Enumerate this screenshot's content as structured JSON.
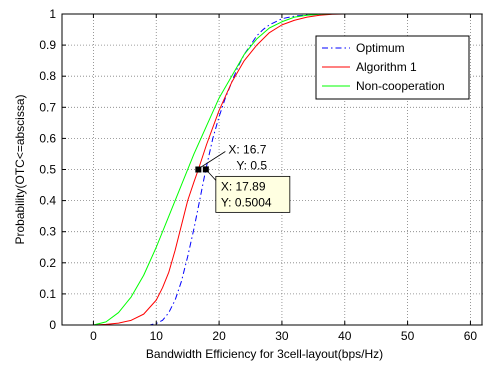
{
  "chart_data": {
    "type": "line",
    "title": "",
    "xlabel": "Bandwidth Efficiency for 3cell-layout(bps/Hz)",
    "ylabel": "Probability(OTC<=abscissa)",
    "xlim": [
      -5,
      62
    ],
    "ylim": [
      0,
      1
    ],
    "xticks": [
      0,
      10,
      20,
      30,
      40,
      50,
      60
    ],
    "yticks": [
      0,
      0.1,
      0.2,
      0.3,
      0.4,
      0.5,
      0.6,
      0.7,
      0.8,
      0.9,
      1
    ],
    "grid": true,
    "legend_position": "top-right",
    "series": [
      {
        "name": "Optimum",
        "color": "#0000ff",
        "style": "dashdot",
        "x": [
          0,
          5,
          9,
          10,
          11,
          12,
          13,
          14,
          15,
          16,
          17,
          17.89,
          19,
          20,
          21,
          22,
          23,
          24,
          25,
          26,
          27,
          28,
          29,
          30,
          32,
          34,
          36,
          38,
          39,
          40
        ],
        "y": [
          0,
          0,
          0,
          0.005,
          0.015,
          0.04,
          0.08,
          0.14,
          0.22,
          0.31,
          0.41,
          0.5004,
          0.6,
          0.67,
          0.73,
          0.78,
          0.83,
          0.87,
          0.9,
          0.93,
          0.95,
          0.965,
          0.975,
          0.985,
          0.993,
          0.997,
          0.999,
          1,
          1,
          1
        ]
      },
      {
        "name": "Algorithm 1",
        "color": "#ff0000",
        "style": "solid",
        "x": [
          0,
          2,
          4,
          6,
          8,
          10,
          11,
          12,
          13,
          14,
          15,
          16,
          16.7,
          18,
          20,
          22,
          24,
          26,
          28,
          30,
          32,
          34,
          36,
          38,
          40
        ],
        "y": [
          0,
          0.002,
          0.006,
          0.015,
          0.035,
          0.08,
          0.12,
          0.17,
          0.24,
          0.32,
          0.4,
          0.46,
          0.5,
          0.58,
          0.69,
          0.78,
          0.85,
          0.9,
          0.94,
          0.965,
          0.98,
          0.99,
          0.996,
          0.999,
          1
        ]
      },
      {
        "name": "Non-cooperation",
        "color": "#00ff00",
        "style": "solid",
        "x": [
          0,
          2,
          4,
          6,
          8,
          10,
          12,
          14,
          16,
          18,
          20,
          22,
          24,
          26,
          28,
          30,
          32,
          34,
          36,
          38
        ],
        "y": [
          0,
          0.01,
          0.04,
          0.09,
          0.16,
          0.25,
          0.35,
          0.45,
          0.55,
          0.64,
          0.73,
          0.8,
          0.87,
          0.92,
          0.955,
          0.975,
          0.99,
          0.996,
          0.999,
          1
        ]
      }
    ],
    "annotations": [
      {
        "series": "Algorithm 1",
        "x": 16.7,
        "y": 0.5,
        "x_text": "X: 16.7",
        "y_text": "Y: 0.5",
        "boxed": false
      },
      {
        "series": "Optimum",
        "x": 17.89,
        "y": 0.5004,
        "x_text": "X: 17.89",
        "y_text": "Y: 0.5004",
        "boxed": true,
        "box_color": "#ffffe1"
      }
    ]
  }
}
